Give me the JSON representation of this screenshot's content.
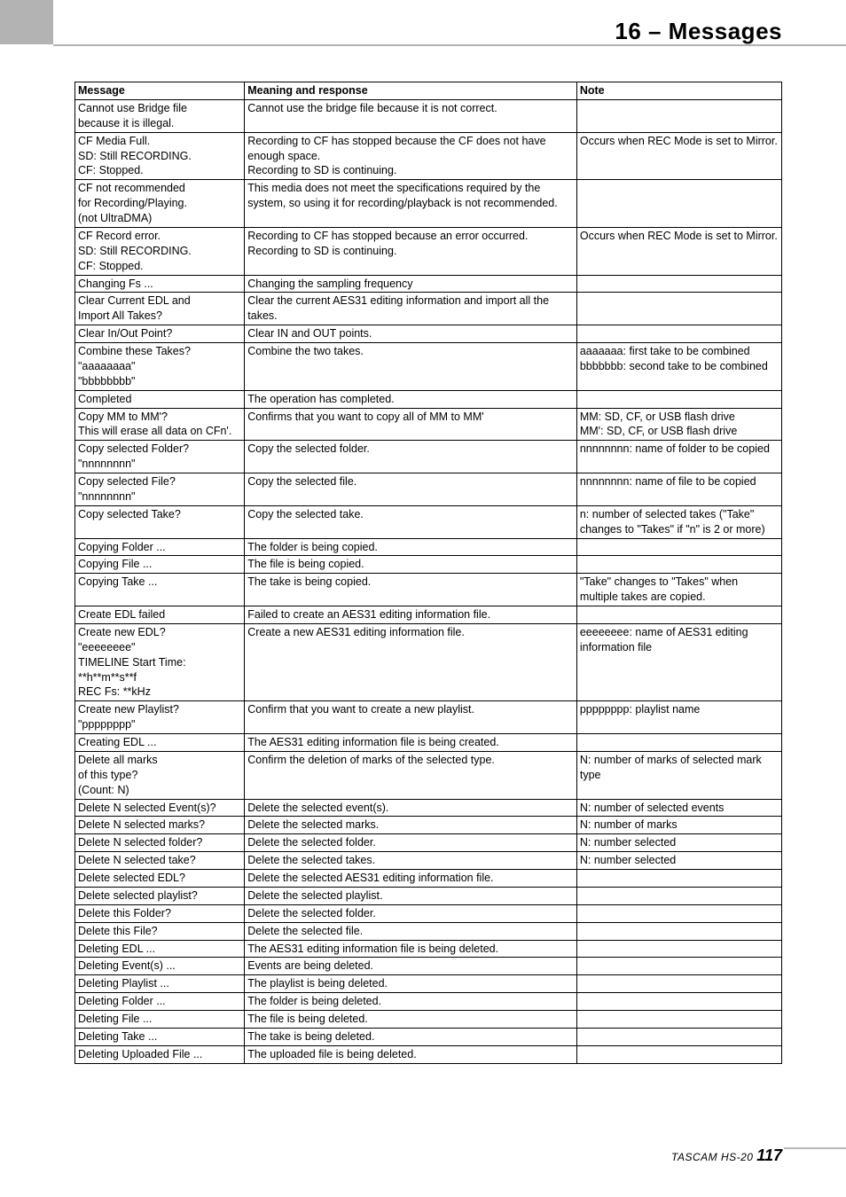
{
  "header": {
    "title": "16 – Messages"
  },
  "footer": {
    "model": "TASCAM HS-20 ",
    "page": "117"
  },
  "table": {
    "columns": [
      "Message",
      "Meaning and response",
      "Note"
    ],
    "rows": [
      {
        "message": "Cannot use Bridge file\nbecause it is illegal.",
        "meaning": "Cannot use the bridge file because it is not correct.",
        "note": ""
      },
      {
        "message": "CF Media Full.\nSD: Still RECORDING.\nCF: Stopped.",
        "meaning": "Recording to CF has stopped because the CF does not have enough space.\nRecording to SD is continuing.",
        "note": "Occurs when REC Mode is set to Mirror."
      },
      {
        "message": "CF not recommended\nfor Recording/Playing.\n(not UltraDMA)",
        "meaning": "This media does not meet the specifications required by the system, so using it for recording/playback is not recommended.",
        "note": ""
      },
      {
        "message": "CF Record error.\nSD: Still RECORDING.\nCF: Stopped.",
        "meaning": "Recording to CF has stopped because an error occurred.\nRecording to SD is continuing.",
        "note": "Occurs when REC Mode is set to Mirror."
      },
      {
        "message": "Changing Fs ...",
        "meaning": "Changing the sampling frequency",
        "note": ""
      },
      {
        "message": "Clear Current EDL and\nImport All Takes?",
        "meaning": "Clear the current AES31 editing information and import all the takes.",
        "note": ""
      },
      {
        "message": "Clear In/Out Point?",
        "meaning": "Clear IN and OUT points.",
        "note": ""
      },
      {
        "message": "Combine these Takes?\n\"aaaaaaaa\"\n\"bbbbbbbb\"",
        "meaning": "Combine the two takes.",
        "note": "aaaaaaa: first take to be combined\nbbbbbbb: second take to be combined"
      },
      {
        "message": "Completed",
        "meaning": "The operation has completed.",
        "note": ""
      },
      {
        "message": "Copy MM to MM'?\nThis will erase all data on CFn'.",
        "meaning": "Confirms that you want to copy all of MM to MM'",
        "note": "MM: SD, CF, or USB flash drive\nMM': SD, CF, or USB flash drive"
      },
      {
        "message": "Copy selected Folder?\n\"nnnnnnnn\"",
        "meaning": "Copy the selected folder.",
        "note": "nnnnnnnn: name of folder to be copied"
      },
      {
        "message": "Copy selected File?\n\"nnnnnnnn\"",
        "meaning": "Copy the selected file.",
        "note": "nnnnnnnn: name of file to be copied"
      },
      {
        "message": "Copy selected Take?",
        "meaning": "Copy the selected take.",
        "note": "n: number of selected takes (\"Take\" changes to \"Takes\" if \"n\" is 2 or more)"
      },
      {
        "message": "Copying Folder ...",
        "meaning": "The folder is being copied.",
        "note": ""
      },
      {
        "message": "Copying File ...",
        "meaning": "The file is being copied.",
        "note": ""
      },
      {
        "message": "Copying Take ...",
        "meaning": "The take is being copied.",
        "note": "\"Take\" changes to \"Takes\" when multiple takes are copied."
      },
      {
        "message": "Create EDL failed",
        "meaning": "Failed to create an AES31 editing information file.",
        "note": ""
      },
      {
        "message": "Create new EDL?\n\"eeeeeeee\"\nTIMELINE Start Time:\n**h**m**s**f\nREC Fs: **kHz",
        "meaning": "Create a new AES31 editing information file.",
        "note": "eeeeeeee: name of AES31 editing information file"
      },
      {
        "message": "Create new Playlist?\n\"pppppppp\"",
        "meaning": "Confirm that you want to create a new playlist.",
        "note": "pppppppp: playlist name"
      },
      {
        "message": "Creating EDL ...",
        "meaning": "The AES31 editing information file is being created.",
        "note": ""
      },
      {
        "message": "Delete all marks\nof this type?\n(Count: N)",
        "meaning": "Confirm the deletion of marks of the selected type.",
        "note": "N: number of marks of selected mark type"
      },
      {
        "message": "Delete N selected Event(s)?",
        "meaning": "Delete the selected event(s).",
        "note": "N: number of selected events"
      },
      {
        "message": "Delete N selected marks?",
        "meaning": "Delete the selected marks.",
        "note": "N: number of marks"
      },
      {
        "message": "Delete N selected folder?",
        "meaning": "Delete the selected folder.",
        "note": "N: number selected"
      },
      {
        "message": "Delete N selected take?",
        "meaning": "Delete the selected takes.",
        "note": "N: number selected"
      },
      {
        "message": "Delete selected EDL?",
        "meaning": "Delete the selected AES31 editing information file.",
        "note": ""
      },
      {
        "message": "Delete selected playlist?",
        "meaning": "Delete the selected playlist.",
        "note": ""
      },
      {
        "message": "Delete this Folder?",
        "meaning": "Delete the selected folder.",
        "note": ""
      },
      {
        "message": "Delete this File?",
        "meaning": "Delete the selected file.",
        "note": ""
      },
      {
        "message": "Deleting EDL ...",
        "meaning": "The AES31 editing information file is being deleted.",
        "note": ""
      },
      {
        "message": "Deleting Event(s) ...",
        "meaning": "Events are being deleted.\n ",
        "note": ""
      },
      {
        "message": "Deleting Playlist ...",
        "meaning": "The playlist is being deleted.",
        "note": ""
      },
      {
        "message": "Deleting Folder ...",
        "meaning": "The folder is being deleted.",
        "note": ""
      },
      {
        "message": "Deleting File ...",
        "meaning": "The file is being deleted.",
        "note": ""
      },
      {
        "message": "Deleting Take ...",
        "meaning": "The take is being deleted.",
        "note": ""
      },
      {
        "message": "Deleting Uploaded File ...",
        "meaning": "The uploaded file is being deleted.\n ",
        "note": ""
      }
    ]
  }
}
